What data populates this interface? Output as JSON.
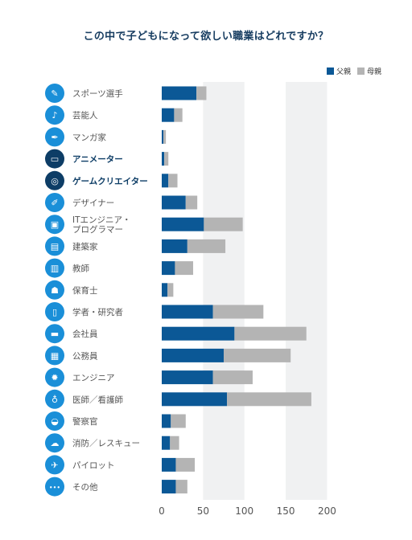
{
  "chart_data": {
    "type": "bar",
    "orientation": "horizontal",
    "stacked": true,
    "title": "この中で子どもになって欲しい職業はどれですか？",
    "categories": [
      "スポーツ選手",
      "芸能人",
      "マンガ家",
      "アニメーター",
      "ゲームクリエイター",
      "デザイナー",
      "ITエンジニア・\nプログラマー",
      "建築家",
      "教師",
      "保育士",
      "学者・研究者",
      "会社員",
      "公務員",
      "エンジニア",
      "医師／看護師",
      "警察官",
      "消防／レスキュー",
      "パイロット",
      "その他"
    ],
    "highlight_categories": [
      "アニメーター",
      "ゲームクリエイター"
    ],
    "icons": [
      "sports-icon",
      "microphone-icon",
      "pen-icon",
      "tv-icon",
      "gamepad-icon",
      "palette-icon",
      "computer-icon",
      "blueprint-icon",
      "book-icon",
      "apron-icon",
      "flask-icon",
      "briefcase-icon",
      "building-icon",
      "gear-icon",
      "stethoscope-icon",
      "police-cap-icon",
      "fire-icon",
      "airplane-icon",
      "more-icon"
    ],
    "series": [
      {
        "name": "父親",
        "color": "#0b5896",
        "values": [
          42,
          15,
          2,
          3,
          8,
          29,
          51,
          31,
          16,
          7,
          62,
          88,
          75,
          62,
          79,
          11,
          10,
          17,
          17
        ]
      },
      {
        "name": "母親",
        "color": "#b4b4b4",
        "values": [
          12,
          10,
          3,
          5,
          11,
          14,
          47,
          46,
          22,
          7,
          61,
          87,
          81,
          48,
          102,
          18,
          11,
          23,
          14
        ]
      }
    ],
    "xticks": [
      0,
      50,
      100,
      150,
      200
    ],
    "xlim": [
      0,
      200
    ],
    "grid": "alternating-bands",
    "legend": "top-right"
  }
}
